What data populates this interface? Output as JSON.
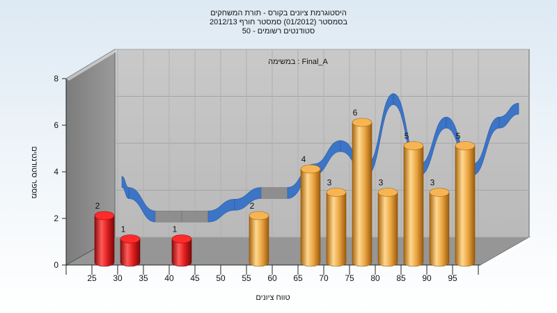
{
  "chart_data": {
    "type": "bar",
    "title_lines": [
      "היסטוגרמת ציונים בקורס - תורת המשחקים",
      "בסמסטר  (01/2012)  סמסטר חורף  2012/13",
      "סטודנטים רשומים - 50"
    ],
    "annotation": "במשימה : Final_A",
    "xlabel": "טווח ציונים",
    "ylabel": "מספר סטודנטים",
    "ylim": [
      0,
      8
    ],
    "yticks": [
      "0",
      "2",
      "4",
      "6",
      "8"
    ],
    "x_ticks": [
      "25",
      "30",
      "35",
      "40",
      "45",
      "50",
      "55",
      "60",
      "65",
      "70",
      "75",
      "80",
      "85",
      "90",
      "95"
    ],
    "bars": [
      {
        "x": 25,
        "value": 2,
        "label": "2",
        "color": "#dd1c1c"
      },
      {
        "x": 30,
        "value": 1,
        "label": "1",
        "color": "#dd1c1c"
      },
      {
        "x": 40,
        "value": 1,
        "label": "1",
        "color": "#dd1c1c"
      },
      {
        "x": 55,
        "value": 2,
        "label": "2",
        "color": "#e9a445"
      },
      {
        "x": 65,
        "value": 4,
        "label": "4",
        "color": "#e9a445"
      },
      {
        "x": 70,
        "value": 3,
        "label": "3",
        "color": "#e9a445"
      },
      {
        "x": 75,
        "value": 6,
        "label": "6",
        "color": "#e9a445"
      },
      {
        "x": 80,
        "value": 3,
        "label": "3",
        "color": "#e9a445"
      },
      {
        "x": 85,
        "value": 5,
        "label": "5",
        "color": "#e9a445"
      },
      {
        "x": 90,
        "value": 3,
        "label": "3",
        "color": "#e9a445"
      },
      {
        "x": 95,
        "value": 5,
        "label": "5",
        "color": "#e9a445"
      }
    ],
    "ribbon": {
      "x": [
        25,
        30,
        35,
        40,
        45,
        50,
        55,
        60,
        65,
        70,
        75,
        80,
        85,
        90,
        95
      ],
      "values": [
        2,
        1,
        1,
        1,
        1.5,
        2,
        2,
        3,
        4,
        3,
        6,
        3,
        5,
        3,
        5
      ],
      "colors": {
        "light": "#3c74c6",
        "dark": "#8a8a8a"
      }
    },
    "grid": true,
    "legend": "none"
  }
}
